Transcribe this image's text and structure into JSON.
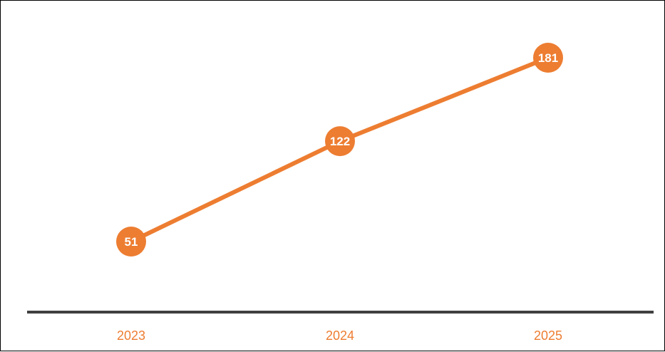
{
  "chart_data": {
    "type": "line",
    "categories": [
      "2023",
      "2024",
      "2025"
    ],
    "series": [
      {
        "values": [
          51,
          122,
          181
        ],
        "color": "#ED7D31"
      }
    ],
    "data_labels": [
      "51",
      "122",
      "181"
    ],
    "title": "",
    "xlabel": "",
    "ylabel": "",
    "grid": false,
    "legend": "none",
    "colors": {
      "series": "#ED7D31",
      "marker": "#ED7D31",
      "marker_label": "#FFFFFF",
      "axis_line": "#404040",
      "tick_label": "#ED7D31"
    }
  }
}
